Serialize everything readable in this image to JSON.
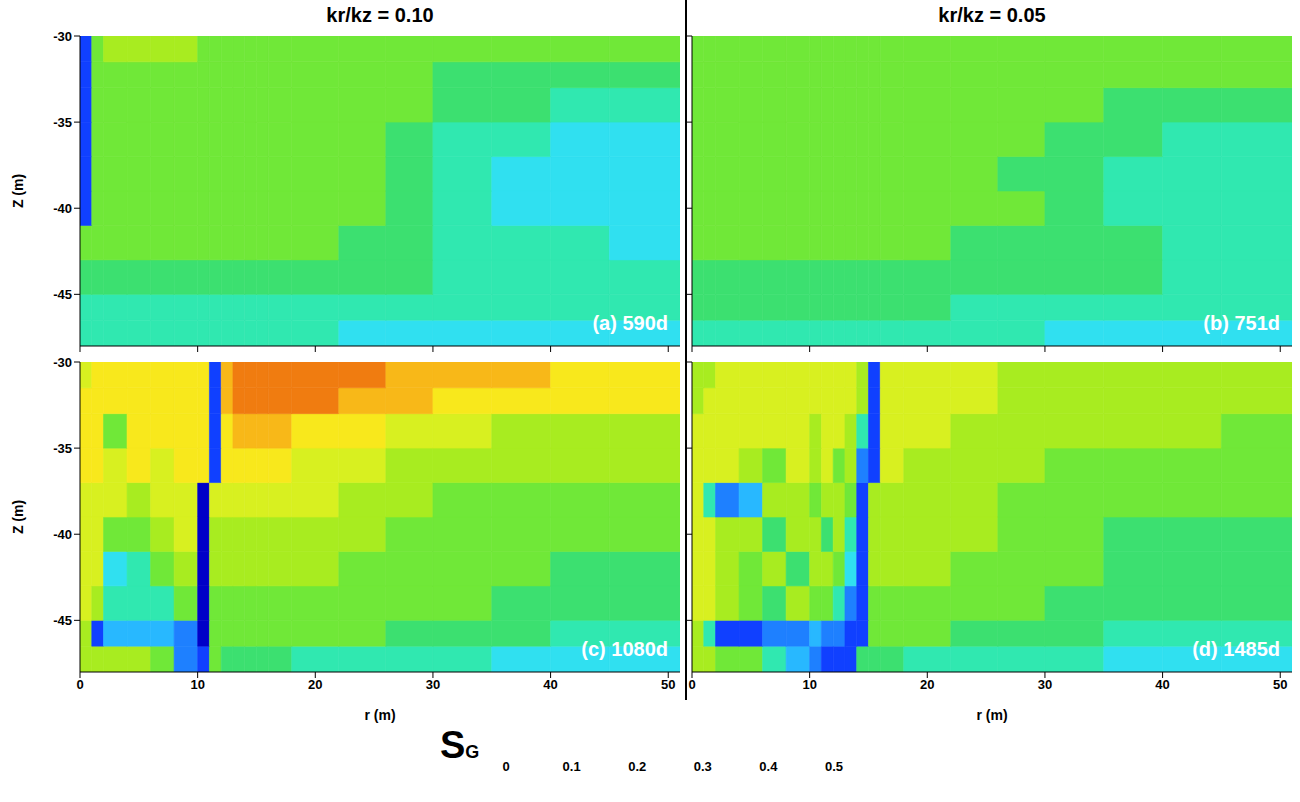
{
  "columns": [
    "kr/kz = 0.10",
    "kr/kz = 0.05"
  ],
  "colorbar": {
    "label": "SG",
    "range": [
      0,
      0.5
    ],
    "ticks": [
      0,
      0.1,
      0.2,
      0.3,
      0.4,
      0.5
    ],
    "colors": [
      "#0000c8",
      "#1040ff",
      "#1e80ff",
      "#28b8ff",
      "#30e0f0",
      "#30e8b0",
      "#3ce070",
      "#70e838",
      "#a8ec20",
      "#d8f020",
      "#f8e81c",
      "#f8b818",
      "#f07c10",
      "#e02810"
    ]
  },
  "chart_data": [
    {
      "type": "heatmap",
      "annotation": "(a) 590d",
      "y_label": "Z (m)",
      "tick_labels": "y",
      "xlim": [
        0,
        51
      ],
      "ylim": [
        -48,
        -30
      ],
      "xticks": [
        0,
        10,
        20,
        30,
        40,
        50
      ],
      "yticks": [
        -30,
        -35,
        -40,
        -45
      ],
      "r_edges": [
        0,
        1,
        2,
        4,
        6,
        8,
        10,
        11,
        12,
        13,
        14,
        15,
        16,
        18,
        22,
        26,
        30,
        35,
        40,
        45,
        51
      ],
      "z_edges": [
        -48,
        -46.5,
        -45,
        -43,
        -41,
        -39,
        -37,
        -35,
        -33,
        -31.5,
        -30
      ],
      "cells": [
        [
          0.18,
          0.18,
          0.18,
          0.18,
          0.18,
          0.18,
          0.18,
          0.18,
          0.18,
          0.18,
          0.18,
          0.18,
          0.18,
          0.18,
          0.17,
          0.17,
          0.17,
          0.16,
          0.16,
          0.15
        ],
        [
          0.21,
          0.21,
          0.21,
          0.21,
          0.21,
          0.21,
          0.21,
          0.21,
          0.21,
          0.21,
          0.21,
          0.21,
          0.21,
          0.21,
          0.21,
          0.2,
          0.2,
          0.2,
          0.19,
          0.19
        ],
        [
          0.23,
          0.23,
          0.23,
          0.23,
          0.23,
          0.23,
          0.23,
          0.23,
          0.23,
          0.23,
          0.23,
          0.23,
          0.23,
          0.23,
          0.22,
          0.22,
          0.21,
          0.2,
          0.2,
          0.2
        ],
        [
          0.25,
          0.25,
          0.25,
          0.25,
          0.25,
          0.25,
          0.25,
          0.25,
          0.25,
          0.25,
          0.25,
          0.25,
          0.25,
          0.25,
          0.24,
          0.23,
          0.21,
          0.19,
          0.18,
          0.17
        ],
        [
          0.05,
          0.26,
          0.26,
          0.26,
          0.26,
          0.26,
          0.26,
          0.26,
          0.26,
          0.26,
          0.26,
          0.26,
          0.26,
          0.26,
          0.25,
          0.23,
          0.2,
          0.17,
          0.16,
          0.16
        ],
        [
          0.05,
          0.26,
          0.26,
          0.26,
          0.26,
          0.26,
          0.26,
          0.26,
          0.26,
          0.26,
          0.26,
          0.26,
          0.26,
          0.26,
          0.25,
          0.22,
          0.19,
          0.17,
          0.16,
          0.15
        ],
        [
          0.05,
          0.26,
          0.26,
          0.26,
          0.26,
          0.26,
          0.26,
          0.26,
          0.26,
          0.26,
          0.26,
          0.26,
          0.26,
          0.26,
          0.25,
          0.23,
          0.2,
          0.18,
          0.17,
          0.17
        ],
        [
          0.05,
          0.27,
          0.27,
          0.27,
          0.27,
          0.27,
          0.27,
          0.27,
          0.27,
          0.27,
          0.27,
          0.27,
          0.27,
          0.27,
          0.26,
          0.25,
          0.23,
          0.22,
          0.2,
          0.19
        ],
        [
          0.05,
          0.27,
          0.28,
          0.28,
          0.28,
          0.27,
          0.27,
          0.26,
          0.26,
          0.26,
          0.26,
          0.26,
          0.26,
          0.25,
          0.25,
          0.25,
          0.24,
          0.24,
          0.24,
          0.24
        ],
        [
          0.05,
          0.28,
          0.29,
          0.29,
          0.29,
          0.29,
          0.28,
          0.28,
          0.28,
          0.28,
          0.28,
          0.28,
          0.28,
          0.27,
          0.27,
          0.27,
          0.26,
          0.26,
          0.26,
          0.26
        ]
      ]
    },
    {
      "type": "heatmap",
      "annotation": "(b) 751d",
      "tick_labels": false,
      "xlim": [
        0,
        51
      ],
      "ylim": [
        -48,
        -30
      ],
      "xticks": [
        0,
        10,
        20,
        30,
        40,
        50
      ],
      "yticks": [
        -30,
        -35,
        -40,
        -45
      ],
      "r_edges": [
        0,
        1,
        2,
        4,
        6,
        8,
        10,
        11,
        12,
        13,
        14,
        15,
        16,
        18,
        22,
        26,
        30,
        35,
        40,
        45,
        51
      ],
      "z_edges": [
        -48,
        -46.5,
        -45,
        -43,
        -41,
        -39,
        -37,
        -35,
        -33,
        -31.5,
        -30
      ],
      "cells": [
        [
          0.19,
          0.19,
          0.19,
          0.19,
          0.19,
          0.19,
          0.19,
          0.19,
          0.19,
          0.19,
          0.19,
          0.19,
          0.19,
          0.19,
          0.18,
          0.18,
          0.17,
          0.17,
          0.16,
          0.16
        ],
        [
          0.22,
          0.22,
          0.22,
          0.22,
          0.22,
          0.22,
          0.22,
          0.22,
          0.22,
          0.22,
          0.22,
          0.22,
          0.22,
          0.22,
          0.21,
          0.21,
          0.21,
          0.2,
          0.2,
          0.19
        ],
        [
          0.24,
          0.24,
          0.24,
          0.24,
          0.24,
          0.24,
          0.24,
          0.24,
          0.24,
          0.24,
          0.24,
          0.24,
          0.24,
          0.24,
          0.23,
          0.23,
          0.22,
          0.22,
          0.21,
          0.21
        ],
        [
          0.25,
          0.25,
          0.25,
          0.25,
          0.25,
          0.25,
          0.25,
          0.25,
          0.25,
          0.25,
          0.25,
          0.25,
          0.25,
          0.25,
          0.24,
          0.24,
          0.23,
          0.22,
          0.21,
          0.21
        ],
        [
          0.26,
          0.26,
          0.26,
          0.26,
          0.26,
          0.26,
          0.26,
          0.26,
          0.26,
          0.26,
          0.26,
          0.26,
          0.26,
          0.26,
          0.26,
          0.25,
          0.23,
          0.21,
          0.2,
          0.2
        ],
        [
          0.26,
          0.26,
          0.26,
          0.26,
          0.26,
          0.26,
          0.26,
          0.26,
          0.26,
          0.26,
          0.26,
          0.26,
          0.26,
          0.26,
          0.25,
          0.24,
          0.22,
          0.21,
          0.2,
          0.2
        ],
        [
          0.26,
          0.26,
          0.26,
          0.26,
          0.26,
          0.26,
          0.26,
          0.26,
          0.26,
          0.26,
          0.26,
          0.26,
          0.26,
          0.26,
          0.26,
          0.25,
          0.23,
          0.22,
          0.21,
          0.21
        ],
        [
          0.27,
          0.27,
          0.27,
          0.27,
          0.27,
          0.27,
          0.27,
          0.27,
          0.27,
          0.27,
          0.27,
          0.27,
          0.27,
          0.27,
          0.27,
          0.26,
          0.25,
          0.24,
          0.23,
          0.23
        ],
        [
          0.27,
          0.27,
          0.27,
          0.27,
          0.27,
          0.27,
          0.27,
          0.27,
          0.27,
          0.27,
          0.27,
          0.27,
          0.27,
          0.27,
          0.27,
          0.27,
          0.26,
          0.26,
          0.25,
          0.25
        ],
        [
          0.28,
          0.28,
          0.28,
          0.28,
          0.28,
          0.28,
          0.28,
          0.28,
          0.28,
          0.28,
          0.28,
          0.28,
          0.28,
          0.28,
          0.28,
          0.28,
          0.27,
          0.27,
          0.26,
          0.26
        ]
      ]
    },
    {
      "type": "heatmap",
      "annotation": "(c) 1080d",
      "x_label": "r (m)",
      "y_label": "Z (m)",
      "xlim": [
        0,
        51
      ],
      "ylim": [
        -48,
        -30
      ],
      "xticks": [
        0,
        10,
        20,
        30,
        40,
        50
      ],
      "yticks": [
        -30,
        -35,
        -40,
        -45
      ],
      "r_edges": [
        0,
        1,
        2,
        4,
        6,
        8,
        10,
        11,
        12,
        13,
        14,
        15,
        16,
        18,
        22,
        26,
        30,
        35,
        40,
        45,
        51
      ],
      "z_edges": [
        -48,
        -46.5,
        -45,
        -43,
        -41,
        -39,
        -37,
        -35,
        -33,
        -31.5,
        -30
      ],
      "cells": [
        [
          0.3,
          0.3,
          0.3,
          0.3,
          0.28,
          0.1,
          0.05,
          0.25,
          0.22,
          0.22,
          0.22,
          0.22,
          0.22,
          0.21,
          0.2,
          0.19,
          0.18,
          0.17,
          0.16,
          0.15
        ],
        [
          0.3,
          0.05,
          0.12,
          0.12,
          0.12,
          0.1,
          0.03,
          0.26,
          0.27,
          0.27,
          0.27,
          0.27,
          0.27,
          0.27,
          0.25,
          0.24,
          0.23,
          0.22,
          0.21,
          0.2
        ],
        [
          0.34,
          0.3,
          0.2,
          0.2,
          0.18,
          0.25,
          0.03,
          0.28,
          0.28,
          0.28,
          0.28,
          0.28,
          0.28,
          0.28,
          0.27,
          0.26,
          0.25,
          0.24,
          0.24,
          0.23
        ],
        [
          0.34,
          0.34,
          0.15,
          0.2,
          0.25,
          0.3,
          0.03,
          0.3,
          0.3,
          0.3,
          0.3,
          0.3,
          0.3,
          0.29,
          0.28,
          0.27,
          0.26,
          0.25,
          0.24,
          0.24
        ],
        [
          0.35,
          0.35,
          0.25,
          0.28,
          0.32,
          0.34,
          0.03,
          0.32,
          0.32,
          0.32,
          0.32,
          0.32,
          0.32,
          0.31,
          0.3,
          0.28,
          0.26,
          0.25,
          0.25,
          0.25
        ],
        [
          0.35,
          0.35,
          0.33,
          0.3,
          0.34,
          0.35,
          0.03,
          0.34,
          0.34,
          0.34,
          0.34,
          0.34,
          0.34,
          0.33,
          0.32,
          0.3,
          0.28,
          0.26,
          0.27,
          0.27
        ],
        [
          0.36,
          0.36,
          0.35,
          0.36,
          0.34,
          0.36,
          0.36,
          0.04,
          0.36,
          0.36,
          0.36,
          0.36,
          0.36,
          0.35,
          0.34,
          0.32,
          0.3,
          0.29,
          0.29,
          0.29
        ],
        [
          0.36,
          0.36,
          0.25,
          0.36,
          0.36,
          0.36,
          0.36,
          0.04,
          0.38,
          0.4,
          0.4,
          0.4,
          0.4,
          0.39,
          0.37,
          0.35,
          0.33,
          0.31,
          0.31,
          0.31
        ],
        [
          0.36,
          0.36,
          0.36,
          0.36,
          0.36,
          0.36,
          0.36,
          0.04,
          0.41,
          0.43,
          0.43,
          0.43,
          0.43,
          0.43,
          0.42,
          0.41,
          0.39,
          0.37,
          0.36,
          0.36
        ],
        [
          0.34,
          0.37,
          0.37,
          0.37,
          0.37,
          0.37,
          0.37,
          0.04,
          0.41,
          0.44,
          0.44,
          0.44,
          0.44,
          0.44,
          0.43,
          0.42,
          0.41,
          0.4,
          0.39,
          0.38
        ]
      ]
    },
    {
      "type": "heatmap",
      "annotation": "(d) 1485d",
      "x_label": "r (m)",
      "tick_labels": "x",
      "xlim": [
        0,
        51
      ],
      "ylim": [
        -48,
        -30
      ],
      "xticks": [
        0,
        10,
        20,
        30,
        40,
        50
      ],
      "yticks": [
        -30,
        -35,
        -40,
        -45
      ],
      "r_edges": [
        0,
        1,
        2,
        4,
        6,
        8,
        10,
        11,
        12,
        13,
        14,
        15,
        16,
        18,
        22,
        26,
        30,
        35,
        40,
        45,
        51
      ],
      "z_edges": [
        -48,
        -46.5,
        -45,
        -43,
        -41,
        -39,
        -37,
        -35,
        -33,
        -31.5,
        -30
      ],
      "cells": [
        [
          0.3,
          0.3,
          0.28,
          0.26,
          0.2,
          0.12,
          0.08,
          0.06,
          0.05,
          0.06,
          0.22,
          0.22,
          0.22,
          0.21,
          0.2,
          0.19,
          0.18,
          0.17,
          0.16,
          0.15
        ],
        [
          0.32,
          0.2,
          0.05,
          0.06,
          0.08,
          0.1,
          0.12,
          0.1,
          0.1,
          0.05,
          0.04,
          0.25,
          0.25,
          0.25,
          0.24,
          0.23,
          0.22,
          0.21,
          0.21,
          0.2
        ],
        [
          0.33,
          0.33,
          0.3,
          0.28,
          0.24,
          0.3,
          0.26,
          0.28,
          0.2,
          0.1,
          0.04,
          0.28,
          0.28,
          0.27,
          0.26,
          0.25,
          0.24,
          0.24,
          0.24,
          0.23
        ],
        [
          0.33,
          0.33,
          0.3,
          0.25,
          0.3,
          0.22,
          0.3,
          0.3,
          0.25,
          0.15,
          0.04,
          0.3,
          0.3,
          0.29,
          0.28,
          0.26,
          0.25,
          0.24,
          0.24,
          0.24
        ],
        [
          0.33,
          0.33,
          0.32,
          0.3,
          0.22,
          0.3,
          0.3,
          0.22,
          0.3,
          0.2,
          0.04,
          0.31,
          0.31,
          0.3,
          0.29,
          0.27,
          0.25,
          0.24,
          0.24,
          0.24
        ],
        [
          0.33,
          0.2,
          0.1,
          0.12,
          0.3,
          0.3,
          0.25,
          0.3,
          0.3,
          0.25,
          0.04,
          0.32,
          0.32,
          0.31,
          0.3,
          0.28,
          0.26,
          0.25,
          0.25,
          0.25
        ],
        [
          0.33,
          0.33,
          0.33,
          0.32,
          0.28,
          0.33,
          0.3,
          0.33,
          0.25,
          0.3,
          0.1,
          0.04,
          0.33,
          0.32,
          0.31,
          0.3,
          0.28,
          0.27,
          0.27,
          0.27
        ],
        [
          0.33,
          0.33,
          0.33,
          0.33,
          0.33,
          0.33,
          0.3,
          0.33,
          0.33,
          0.3,
          0.2,
          0.04,
          0.33,
          0.33,
          0.32,
          0.31,
          0.3,
          0.29,
          0.29,
          0.28
        ],
        [
          0.31,
          0.33,
          0.33,
          0.33,
          0.33,
          0.33,
          0.33,
          0.33,
          0.33,
          0.33,
          0.3,
          0.04,
          0.33,
          0.33,
          0.33,
          0.32,
          0.31,
          0.3,
          0.3,
          0.29
        ],
        [
          0.3,
          0.32,
          0.33,
          0.33,
          0.33,
          0.33,
          0.33,
          0.33,
          0.33,
          0.33,
          0.3,
          0.04,
          0.33,
          0.33,
          0.33,
          0.32,
          0.32,
          0.31,
          0.3,
          0.3
        ]
      ]
    }
  ]
}
